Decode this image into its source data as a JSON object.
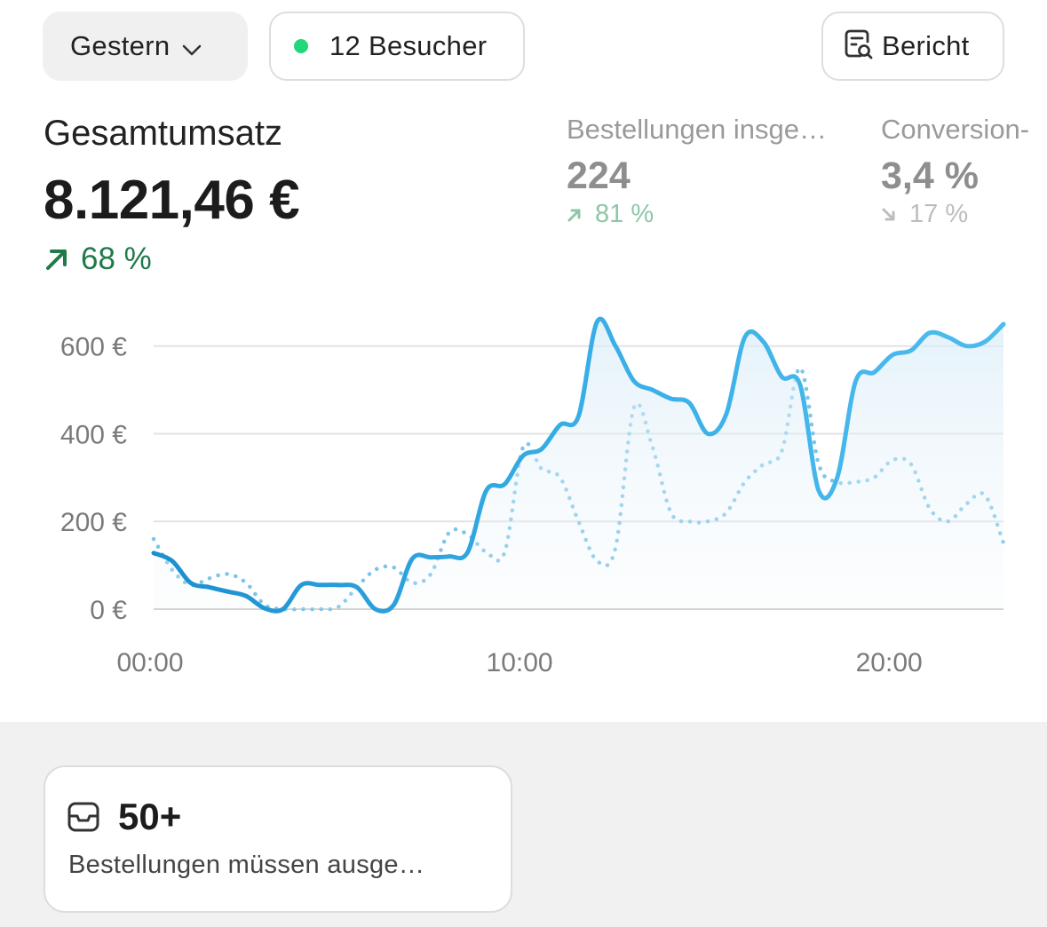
{
  "toolbar": {
    "period_label": "Gestern",
    "visitors_label": "12 Besucher",
    "visitors_dot_color": "#22d67a",
    "report_label": "Bericht"
  },
  "metrics": {
    "total_sales": {
      "label": "Gesamtumsatz",
      "value": "8.121,46 €",
      "change": "68 %",
      "trend": "up"
    },
    "orders": {
      "label": "Bestellungen insge…",
      "value": "224",
      "change": "81 %",
      "trend": "up"
    },
    "conversion": {
      "label": "Conversion-",
      "value": "3,4 %",
      "change": "17 %",
      "trend": "down"
    }
  },
  "chart_data": {
    "type": "line",
    "y_tick_labels": [
      "0 €",
      "200 €",
      "400 €",
      "600 €"
    ],
    "x_tick_labels": [
      "00:00",
      "10:00",
      "20:00"
    ],
    "ylim": [
      0,
      650
    ],
    "xlim": [
      0,
      23
    ],
    "grid": true,
    "series": [
      {
        "style": "solid",
        "color": "#2aa6e0",
        "x": [
          0,
          0.5,
          1,
          1.5,
          2,
          2.5,
          3,
          3.5,
          4,
          4.5,
          5,
          5.5,
          6,
          6.5,
          7,
          7.5,
          8,
          8.5,
          9,
          9.5,
          10,
          10.5,
          11,
          11.5,
          12,
          12.5,
          13,
          13.5,
          14,
          14.5,
          15,
          15.5,
          16,
          16.5,
          17,
          17.5,
          18,
          18.5,
          19,
          19.5,
          20,
          20.5,
          21,
          21.5,
          22,
          22.5,
          23
        ],
        "values": [
          128,
          110,
          60,
          50,
          40,
          30,
          2,
          0,
          55,
          55,
          55,
          50,
          0,
          10,
          115,
          118,
          120,
          130,
          270,
          285,
          350,
          365,
          420,
          440,
          655,
          600,
          520,
          500,
          480,
          470,
          400,
          445,
          620,
          610,
          530,
          510,
          270,
          300,
          520,
          540,
          580,
          590,
          630,
          620,
          600,
          610,
          650
        ]
      },
      {
        "style": "dotted",
        "color": "#7cc4e8",
        "x": [
          0,
          0.5,
          1,
          1.5,
          2,
          2.5,
          3,
          3.5,
          4,
          4.5,
          5,
          5.5,
          6,
          6.5,
          7,
          7.5,
          8,
          8.5,
          9,
          9.5,
          10,
          10.5,
          11,
          11.5,
          12,
          12.5,
          13,
          13.5,
          14,
          14.5,
          15,
          15.5,
          16,
          16.5,
          17,
          17.5,
          18,
          18.5,
          19,
          19.5,
          20,
          20.5,
          21,
          21.5,
          22,
          22.5,
          23
        ],
        "values": [
          160,
          90,
          55,
          70,
          80,
          60,
          10,
          0,
          0,
          0,
          5,
          50,
          90,
          95,
          60,
          80,
          175,
          170,
          130,
          130,
          370,
          320,
          300,
          200,
          110,
          140,
          460,
          370,
          220,
          200,
          200,
          220,
          290,
          330,
          360,
          550,
          330,
          290,
          290,
          300,
          340,
          330,
          230,
          200,
          240,
          260,
          150
        ]
      }
    ]
  },
  "todo_card": {
    "count": "50+",
    "description": "Bestellungen müssen ausge…"
  }
}
